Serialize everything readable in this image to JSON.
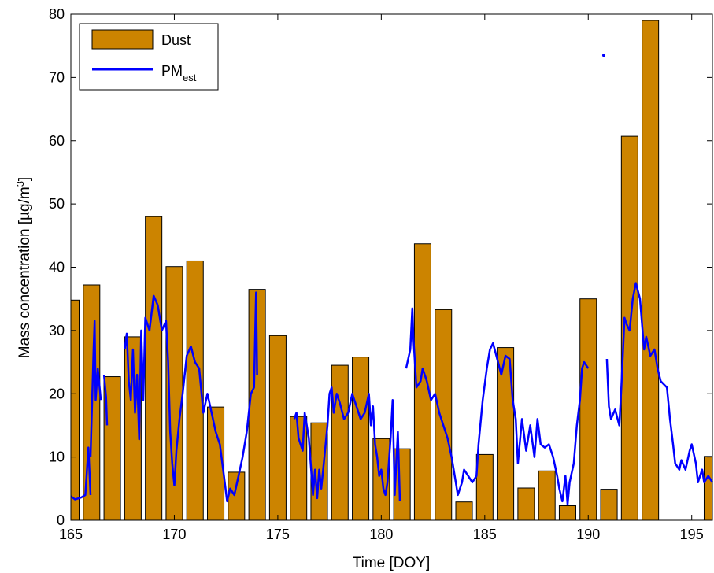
{
  "chart_data": {
    "type": "bar",
    "xlabel": "Time [DOY]",
    "ylabel": {
      "main": "Mass concentration [µg/m",
      "sup": "3",
      "tail": "]"
    },
    "xlim": [
      165,
      196
    ],
    "ylim": [
      0,
      80
    ],
    "xticks": [
      165,
      170,
      175,
      180,
      185,
      190,
      195
    ],
    "yticks": [
      0,
      10,
      20,
      30,
      40,
      50,
      60,
      70,
      80
    ],
    "legend_position": "top-left",
    "series": [
      {
        "name": "Dust",
        "kind": "bar",
        "color": "#CC8400",
        "x": [
          165,
          166,
          167,
          168,
          169,
          170,
          171,
          172,
          173,
          174,
          175,
          176,
          177,
          178,
          179,
          180,
          181,
          182,
          183,
          184,
          185,
          186,
          187,
          188,
          189,
          190,
          191,
          192,
          193,
          196
        ],
        "values": [
          34.8,
          37.2,
          22.7,
          29.0,
          48.0,
          40.1,
          41.0,
          17.9,
          7.6,
          36.5,
          29.2,
          16.4,
          15.4,
          24.5,
          25.8,
          12.9,
          11.3,
          43.7,
          33.3,
          2.9,
          10.4,
          27.3,
          5.1,
          7.8,
          2.3,
          35.0,
          4.9,
          60.7,
          79.0,
          10.1
        ]
      },
      {
        "name": "PM",
        "name_sub": "est",
        "kind": "line",
        "color": "#0000FF",
        "segments": [
          [
            [
              165.0,
              3.8
            ],
            [
              165.2,
              3.3
            ],
            [
              165.5,
              3.6
            ],
            [
              165.7,
              4.0
            ],
            [
              165.85,
              11.5
            ],
            [
              165.95,
              4.0
            ]
          ],
          [
            [
              165.95,
              10
            ],
            [
              166.1,
              27
            ],
            [
              166.15,
              31.5
            ],
            [
              166.2,
              19
            ],
            [
              166.3,
              24
            ],
            [
              166.45,
              19
            ]
          ],
          [
            [
              166.6,
              23
            ],
            [
              166.7,
              19.5
            ],
            [
              166.75,
              15
            ]
          ],
          [
            [
              167.6,
              27
            ],
            [
              167.7,
              29.5
            ],
            [
              167.8,
              22
            ],
            [
              167.9,
              19
            ],
            [
              168.0,
              27
            ],
            [
              168.1,
              17
            ],
            [
              168.2,
              23
            ],
            [
              168.3,
              12.8
            ],
            [
              168.4,
              30
            ],
            [
              168.5,
              19
            ],
            [
              168.6,
              32
            ],
            [
              168.8,
              30
            ],
            [
              169.0,
              35.5
            ],
            [
              169.2,
              34
            ],
            [
              169.4,
              30
            ],
            [
              169.6,
              31.5
            ],
            [
              169.7,
              25
            ],
            [
              169.8,
              14
            ],
            [
              169.9,
              9
            ],
            [
              170.0,
              5.5
            ],
            [
              170.1,
              11
            ],
            [
              170.25,
              16
            ],
            [
              170.4,
              20
            ],
            [
              170.6,
              26
            ],
            [
              170.8,
              27.5
            ],
            [
              171.0,
              25
            ],
            [
              171.2,
              24
            ],
            [
              171.4,
              17
            ],
            [
              171.6,
              20
            ],
            [
              171.8,
              17
            ],
            [
              172.0,
              14
            ],
            [
              172.2,
              12
            ],
            [
              172.4,
              7
            ],
            [
              172.55,
              3
            ],
            [
              172.7,
              5
            ],
            [
              172.9,
              4
            ],
            [
              173.1,
              7
            ],
            [
              173.3,
              10
            ],
            [
              173.5,
              14
            ],
            [
              173.7,
              20
            ],
            [
              173.85,
              21
            ],
            [
              173.95,
              36
            ],
            [
              174.0,
              23
            ]
          ],
          [
            [
              175.8,
              16
            ],
            [
              175.9,
              17
            ],
            [
              176.0,
              13
            ],
            [
              176.2,
              11
            ],
            [
              176.3,
              17
            ],
            [
              176.5,
              13
            ],
            [
              176.7,
              4
            ],
            [
              176.8,
              8
            ],
            [
              176.9,
              3.5
            ],
            [
              177.0,
              8
            ],
            [
              177.1,
              5
            ],
            [
              177.25,
              10
            ],
            [
              177.4,
              15
            ],
            [
              177.5,
              20
            ],
            [
              177.6,
              21
            ],
            [
              177.7,
              17
            ],
            [
              177.85,
              20
            ],
            [
              178.0,
              18.5
            ],
            [
              178.2,
              16
            ],
            [
              178.4,
              17
            ],
            [
              178.6,
              20
            ],
            [
              178.8,
              18
            ],
            [
              179.0,
              16
            ],
            [
              179.2,
              17
            ],
            [
              179.4,
              20
            ],
            [
              179.5,
              15
            ],
            [
              179.6,
              18
            ],
            [
              179.7,
              12
            ],
            [
              179.8,
              10
            ],
            [
              179.9,
              7
            ],
            [
              180.0,
              8
            ],
            [
              180.1,
              5
            ],
            [
              180.2,
              4
            ],
            [
              180.3,
              6
            ],
            [
              180.45,
              13
            ],
            [
              180.55,
              19
            ],
            [
              180.65,
              4
            ],
            [
              180.8,
              14
            ],
            [
              180.9,
              3
            ]
          ],
          [
            [
              181.2,
              24
            ],
            [
              181.4,
              27
            ],
            [
              181.5,
              33.5
            ],
            [
              181.55,
              29
            ],
            [
              181.7,
              21
            ],
            [
              181.9,
              22
            ],
            [
              182.0,
              24
            ],
            [
              182.2,
              22
            ],
            [
              182.4,
              19
            ],
            [
              182.6,
              20
            ],
            [
              182.8,
              17
            ],
            [
              183.0,
              15
            ],
            [
              183.2,
              13
            ],
            [
              183.4,
              10
            ],
            [
              183.6,
              6
            ],
            [
              183.7,
              4
            ],
            [
              183.9,
              6
            ],
            [
              184.0,
              8
            ],
            [
              184.2,
              7
            ],
            [
              184.4,
              6
            ],
            [
              184.6,
              7
            ],
            [
              184.7,
              12
            ],
            [
              184.9,
              19
            ],
            [
              185.1,
              24
            ],
            [
              185.25,
              27
            ],
            [
              185.4,
              28
            ],
            [
              185.6,
              25.5
            ],
            [
              185.8,
              23
            ],
            [
              186.0,
              26
            ],
            [
              186.2,
              25.5
            ],
            [
              186.35,
              19
            ],
            [
              186.5,
              16
            ],
            [
              186.6,
              9
            ],
            [
              186.8,
              16
            ],
            [
              187.0,
              11
            ],
            [
              187.2,
              15
            ],
            [
              187.4,
              10
            ],
            [
              187.55,
              16
            ],
            [
              187.7,
              12
            ],
            [
              187.9,
              11.5
            ],
            [
              188.1,
              12
            ],
            [
              188.3,
              10
            ],
            [
              188.5,
              7
            ],
            [
              188.6,
              5
            ],
            [
              188.75,
              3
            ],
            [
              188.9,
              7
            ],
            [
              189.0,
              2.5
            ],
            [
              189.1,
              6
            ],
            [
              189.3,
              9
            ],
            [
              189.45,
              15
            ],
            [
              189.6,
              19
            ],
            [
              189.7,
              24
            ],
            [
              189.8,
              25
            ],
            [
              189.9,
              24.5
            ],
            [
              190.0,
              24
            ]
          ],
          [
            [
              190.9,
              25.5
            ],
            [
              191.0,
              18
            ],
            [
              191.1,
              16
            ],
            [
              191.3,
              17.5
            ],
            [
              191.5,
              15
            ],
            [
              191.6,
              21
            ],
            [
              191.75,
              32
            ],
            [
              191.85,
              31
            ],
            [
              192.0,
              30
            ],
            [
              192.15,
              35
            ],
            [
              192.3,
              37.5
            ],
            [
              192.5,
              35
            ],
            [
              192.7,
              27
            ],
            [
              192.8,
              29
            ],
            [
              193.0,
              26
            ],
            [
              193.2,
              27
            ],
            [
              193.35,
              24
            ],
            [
              193.5,
              22
            ],
            [
              193.8,
              21
            ],
            [
              193.95,
              16
            ],
            [
              194.1,
              12
            ],
            [
              194.2,
              9
            ],
            [
              194.4,
              8
            ],
            [
              194.5,
              9.5
            ],
            [
              194.7,
              8
            ],
            [
              194.9,
              11
            ],
            [
              195.0,
              12
            ],
            [
              195.2,
              9
            ],
            [
              195.3,
              6
            ],
            [
              195.5,
              8
            ],
            [
              195.6,
              6
            ],
            [
              195.8,
              7
            ],
            [
              196.0,
              6
            ]
          ]
        ],
        "points": [
          [
            190.75,
            73.5
          ]
        ]
      }
    ]
  }
}
